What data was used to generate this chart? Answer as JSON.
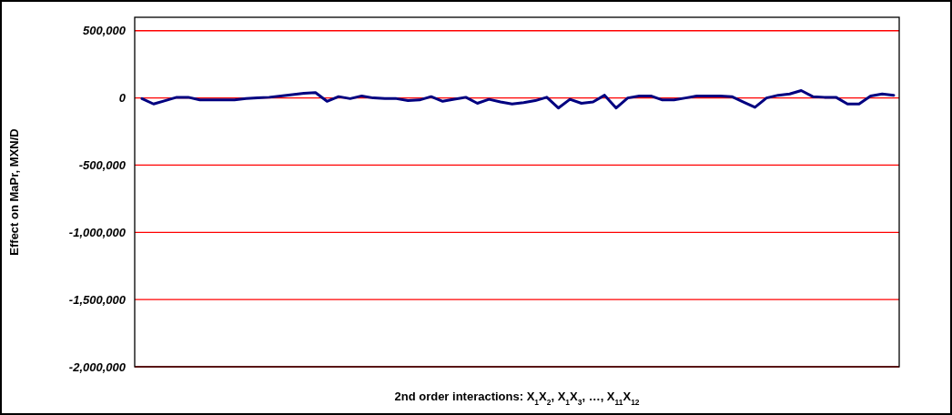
{
  "chart_data": {
    "type": "line",
    "ylabel": "Effect on MaPr, MXN/D",
    "xlabel": "2nd order interactions: X$_{1}$X$_{2}$, X$_{1}$X$_{3}$, …, X$_{11}$X$_{12}$",
    "categories": [
      null,
      null,
      null,
      null,
      null,
      null,
      null,
      null,
      null,
      null,
      null,
      null,
      null,
      null,
      null,
      null,
      null,
      null,
      null,
      null,
      null,
      null,
      null,
      null,
      null,
      null,
      null,
      null,
      null,
      null,
      null,
      null,
      null,
      null,
      null,
      null,
      null,
      null,
      null,
      null,
      null,
      null,
      null,
      null,
      null,
      null,
      null,
      null,
      null,
      null,
      null,
      null,
      null,
      null,
      null,
      null,
      null,
      null,
      null,
      null,
      null,
      null,
      null,
      null,
      null,
      null
    ],
    "series": [
      {
        "color": "#000080",
        "values": [
          -5000,
          -45000,
          -20000,
          5000,
          5000,
          -15000,
          -15000,
          -15000,
          -15000,
          -5000,
          0,
          5000,
          15000,
          25000,
          35000,
          40000,
          -25000,
          10000,
          -5000,
          15000,
          0,
          -5000,
          -5000,
          -20000,
          -15000,
          10000,
          -25000,
          -10000,
          5000,
          -40000,
          -10000,
          -30000,
          -45000,
          -35000,
          -20000,
          5000,
          -75000,
          -10000,
          -40000,
          -30000,
          20000,
          -75000,
          0,
          15000,
          15000,
          -15000,
          -15000,
          0,
          15000,
          15000,
          15000,
          10000,
          -30000,
          -70000,
          0,
          20000,
          30000,
          55000,
          10000,
          5000,
          5000,
          -45000,
          -45000,
          15000,
          30000,
          20000
        ]
      }
    ],
    "ylim": [
      -2000000,
      600000
    ],
    "yticks": [
      {
        "value": -2000000,
        "label": "-2,000,000"
      },
      {
        "value": -1500000,
        "label": "-1,500,000"
      },
      {
        "value": -1000000,
        "label": "-1,000,000"
      },
      {
        "value": -500000,
        "label": "-500,000"
      },
      {
        "value": 0,
        "label": "0"
      },
      {
        "value": 500000,
        "label": "500,000"
      }
    ],
    "grid": "y",
    "marker": "none",
    "line_style": "solid"
  }
}
